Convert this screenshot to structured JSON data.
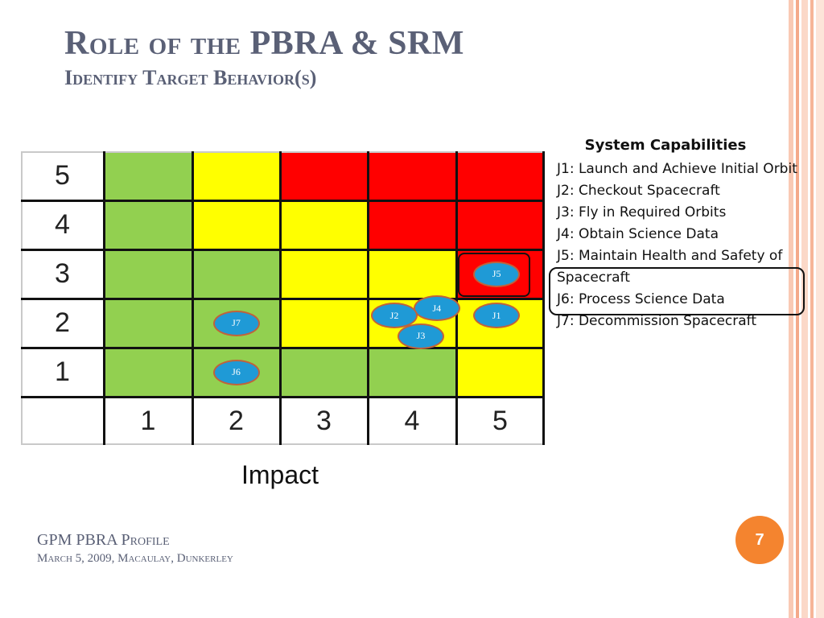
{
  "slide": {
    "title": "Role of the PBRA & SRM",
    "subtitle": "Identify Target Behavior(s)"
  },
  "matrix": {
    "row_labels": [
      "5",
      "4",
      "3",
      "2",
      "1"
    ],
    "column_labels": [
      "1",
      "2",
      "3",
      "4",
      "5"
    ],
    "x_axis_label": "Impact",
    "colors": {
      "green": "#92d050",
      "yellow": "#ffff00",
      "red": "#ff0000"
    },
    "cells": [
      [
        "green",
        "yellow",
        "red",
        "red",
        "red"
      ],
      [
        "green",
        "yellow",
        "yellow",
        "red",
        "red"
      ],
      [
        "green",
        "green",
        "yellow",
        "yellow",
        "red"
      ],
      [
        "green",
        "green",
        "yellow",
        "yellow",
        "yellow"
      ],
      [
        "green",
        "green",
        "green",
        "green",
        "yellow"
      ]
    ],
    "bubbles": [
      {
        "label": "J5",
        "row": 3,
        "col": 5
      },
      {
        "label": "J4",
        "row": 2,
        "col": 4
      },
      {
        "label": "J2",
        "row": 2,
        "col": 4
      },
      {
        "label": "J3",
        "row": 2,
        "col": 4
      },
      {
        "label": "J1",
        "row": 2,
        "col": 5
      },
      {
        "label": "J7",
        "row": 2,
        "col": 2
      },
      {
        "label": "J6",
        "row": 1,
        "col": 2
      }
    ]
  },
  "legend": {
    "title": "System Capabilities",
    "items": [
      "J1: Launch and Achieve Initial Orbit",
      "J2: Checkout Spacecraft",
      "J3: Fly in Required Orbits",
      "J4: Obtain Science Data",
      "J5: Maintain Health and Safety of Spacecraft",
      "J6: Process Science Data",
      "J7: Decommission Spacecraft"
    ]
  },
  "footer": {
    "line1": "GPM PBRA Profile",
    "line2": "March 5, 2009, Macaulay, Dunkerley"
  },
  "page_number": "7",
  "theme": {
    "title_color": "#5a6076",
    "accent": "#f4842f",
    "bubble_fill": "#1f9ad6",
    "bubble_border": "#c0623b"
  }
}
